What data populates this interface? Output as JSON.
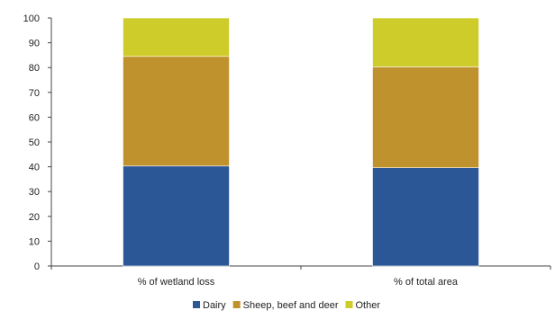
{
  "chart_data": {
    "type": "bar",
    "stacked": true,
    "categories": [
      "% of wetland loss",
      "% of total area"
    ],
    "series": [
      {
        "name": "Dairy",
        "values": [
          40.3,
          39.6
        ],
        "color": "#2b5797"
      },
      {
        "name": "Sheep, beef and deer",
        "values": [
          44.2,
          40.7
        ],
        "color": "#c0922e"
      },
      {
        "name": "Other",
        "values": [
          15.5,
          19.7
        ],
        "color": "#cdcc2a"
      }
    ],
    "ylim": [
      0,
      100
    ],
    "yticks": [
      0,
      10,
      20,
      30,
      40,
      50,
      60,
      70,
      80,
      90,
      100
    ],
    "title": "",
    "xlabel": "",
    "ylabel": "",
    "grid": false,
    "legend": "bottom-center"
  }
}
